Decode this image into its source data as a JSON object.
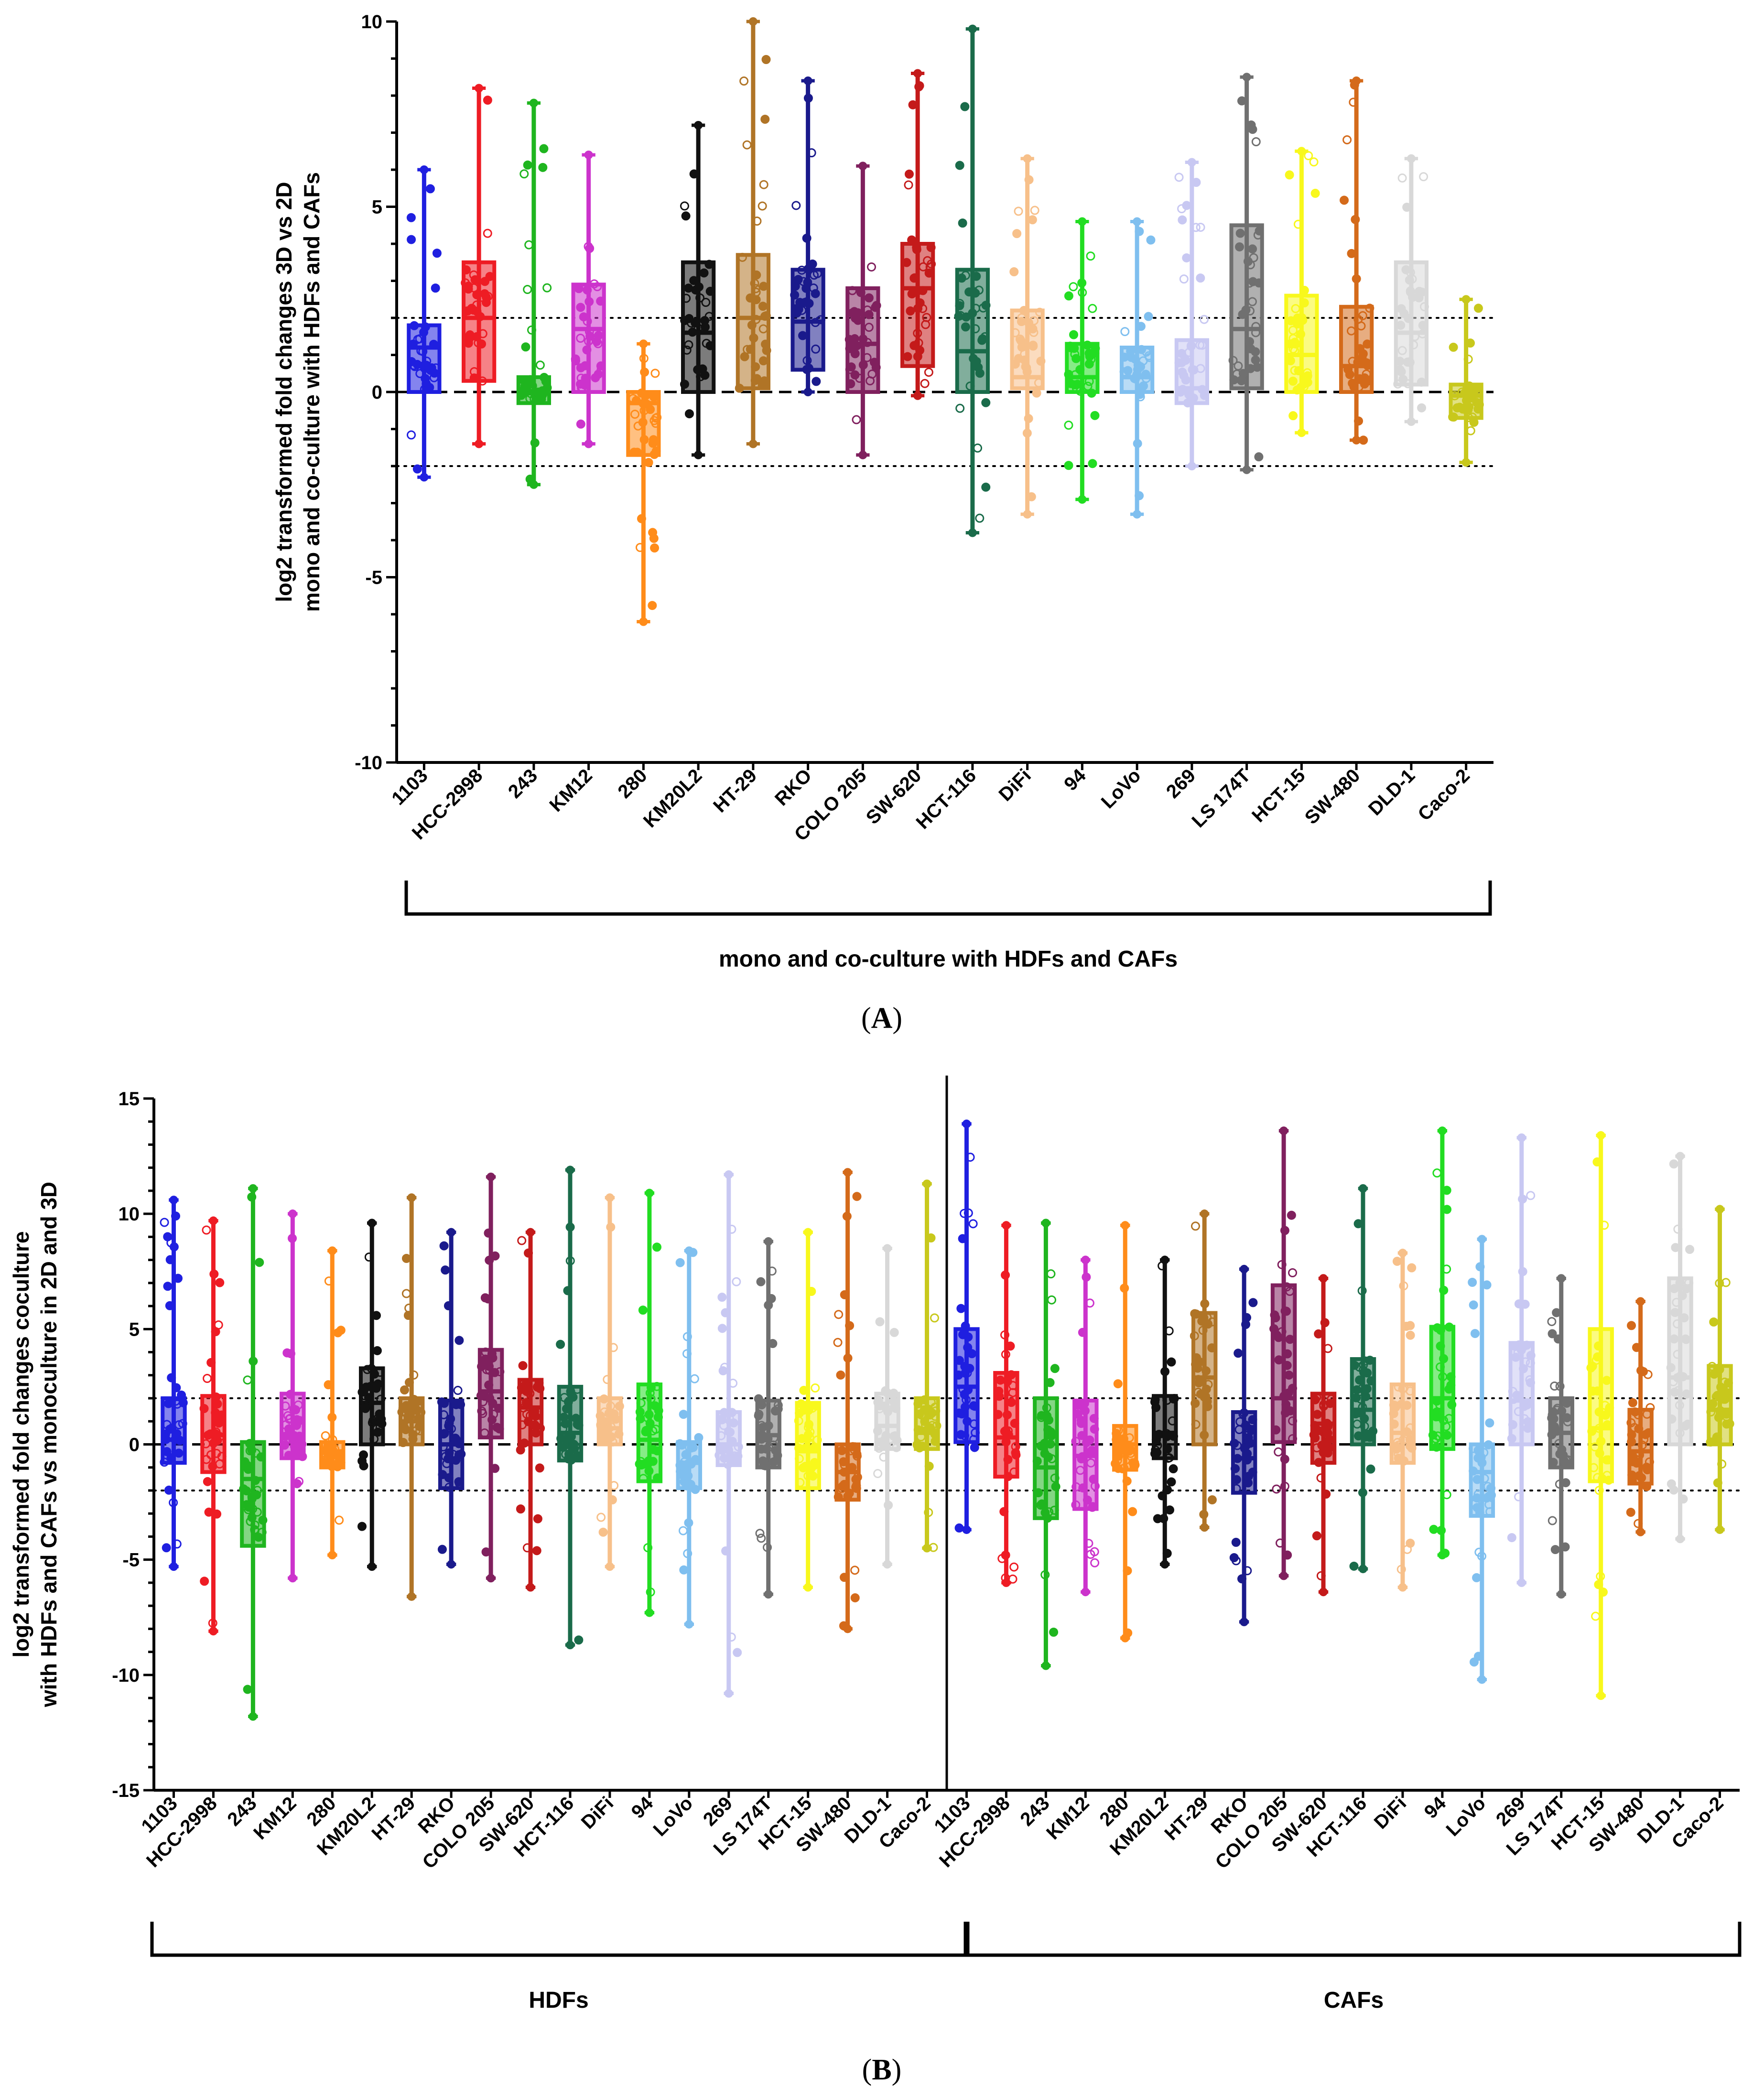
{
  "chart_data": [
    {
      "panel_label": "(A)",
      "panel_letter": "A",
      "type": "box",
      "ylabel": [
        "log2 transformed fold changes 3D vs 2D",
        "mono and co-culture with HDFs and CAFs"
      ],
      "ylim": [
        -10,
        10
      ],
      "yticks": [
        10,
        5,
        0,
        -5,
        -10
      ],
      "reference_lines": {
        "dashed": [
          0
        ],
        "dotted": [
          2,
          -2
        ]
      },
      "group_labels": [
        "mono and co-culture with HDFs and CAFs"
      ],
      "categories": [
        "1103",
        "HCC-2998",
        "243",
        "KM12",
        "280",
        "KM20L2",
        "HT-29",
        "RKO",
        "COLO 205",
        "SW-620",
        "HCT-116",
        "DiFi",
        "94",
        "LoVo",
        "269",
        "LS 174T",
        "HCT-15",
        "SW-480",
        "DLD-1",
        "Caco-2"
      ],
      "colors": [
        "#1f1fe0",
        "#ee1c24",
        "#1fb51f",
        "#cc33cc",
        "#ff8c1a",
        "#111111",
        "#b07426",
        "#1a1a8c",
        "#80205e",
        "#c41a1a",
        "#1a6b4a",
        "#f7c08a",
        "#22dd22",
        "#7fbfef",
        "#c8c8f2",
        "#707070",
        "#f8f81c",
        "#d46a1a",
        "#d8d8d8",
        "#c8c81c"
      ],
      "boxes": [
        {
          "min": -2.3,
          "q1": 0.0,
          "median": 1.2,
          "q3": 1.8,
          "max": 6.0
        },
        {
          "min": -1.4,
          "q1": 0.3,
          "median": 2.0,
          "q3": 3.5,
          "max": 8.2
        },
        {
          "min": -2.5,
          "q1": -0.3,
          "median": 0.0,
          "q3": 0.4,
          "max": 7.8
        },
        {
          "min": -1.4,
          "q1": 0.0,
          "median": 1.7,
          "q3": 2.9,
          "max": 6.4
        },
        {
          "min": -6.2,
          "q1": -1.7,
          "median": -0.3,
          "q3": 0.0,
          "max": 1.3
        },
        {
          "min": -1.7,
          "q1": 0.0,
          "median": 1.6,
          "q3": 3.5,
          "max": 7.2
        },
        {
          "min": -1.4,
          "q1": 0.1,
          "median": 2.0,
          "q3": 3.7,
          "max": 10.0
        },
        {
          "min": 0.0,
          "q1": 0.6,
          "median": 1.9,
          "q3": 3.3,
          "max": 8.4
        },
        {
          "min": -1.7,
          "q1": 0.0,
          "median": 1.3,
          "q3": 2.8,
          "max": 6.1
        },
        {
          "min": -0.1,
          "q1": 0.7,
          "median": 2.8,
          "q3": 4.0,
          "max": 8.6
        },
        {
          "min": -3.8,
          "q1": 0.0,
          "median": 1.1,
          "q3": 3.3,
          "max": 9.8
        },
        {
          "min": -3.3,
          "q1": 0.1,
          "median": 0.4,
          "q3": 2.2,
          "max": 6.3
        },
        {
          "min": -2.9,
          "q1": 0.0,
          "median": 0.4,
          "q3": 1.3,
          "max": 4.6
        },
        {
          "min": -3.3,
          "q1": 0.0,
          "median": 0.4,
          "q3": 1.2,
          "max": 4.6
        },
        {
          "min": -2.0,
          "q1": -0.3,
          "median": 0.1,
          "q3": 1.4,
          "max": 6.2
        },
        {
          "min": -2.1,
          "q1": 0.1,
          "median": 1.7,
          "q3": 4.5,
          "max": 8.5
        },
        {
          "min": -1.1,
          "q1": 0.0,
          "median": 1.0,
          "q3": 2.6,
          "max": 6.5
        },
        {
          "min": -1.3,
          "q1": 0.0,
          "median": 0.7,
          "q3": 2.3,
          "max": 8.4
        },
        {
          "min": -0.8,
          "q1": 0.2,
          "median": 1.6,
          "q3": 3.5,
          "max": 6.3
        },
        {
          "min": -1.9,
          "q1": -0.7,
          "median": -0.1,
          "q3": 0.2,
          "max": 2.5
        }
      ]
    },
    {
      "panel_label": "(B)",
      "panel_letter": "B",
      "type": "box",
      "ylabel": [
        "log2 transformed fold changes coculture",
        "with HDFs and CAFs vs monoculture in 2D and 3D"
      ],
      "ylim": [
        -15,
        15
      ],
      "yticks": [
        15,
        10,
        5,
        0,
        -5,
        -10,
        -15
      ],
      "reference_lines": {
        "dashed": [
          0
        ],
        "dotted": [
          2,
          -2
        ]
      },
      "group_labels": [
        "HDFs",
        "CAFs"
      ],
      "categories": [
        "1103",
        "HCC-2998",
        "243",
        "KM12",
        "280",
        "KM20L2",
        "HT-29",
        "RKO",
        "COLO 205",
        "SW-620",
        "HCT-116",
        "DiFi",
        "94",
        "LoVo",
        "269",
        "LS 174T",
        "HCT-15",
        "SW-480",
        "DLD-1",
        "Caco-2",
        "1103",
        "HCC-2998",
        "243",
        "KM12",
        "280",
        "KM20L2",
        "HT-29",
        "RKO",
        "COLO 205",
        "SW-620",
        "HCT-116",
        "DiFi",
        "94",
        "LoVo",
        "269",
        "LS 174T",
        "HCT-15",
        "SW-480",
        "DLD-1",
        "Caco-2"
      ],
      "colors": [
        "#1f1fe0",
        "#ee1c24",
        "#1fb51f",
        "#cc33cc",
        "#ff8c1a",
        "#111111",
        "#b07426",
        "#1a1a8c",
        "#80205e",
        "#c41a1a",
        "#1a6b4a",
        "#f7c08a",
        "#22dd22",
        "#7fbfef",
        "#c8c8f2",
        "#707070",
        "#f8f81c",
        "#d46a1a",
        "#d8d8d8",
        "#c8c81c",
        "#1f1fe0",
        "#ee1c24",
        "#1fb51f",
        "#cc33cc",
        "#ff8c1a",
        "#111111",
        "#b07426",
        "#1a1a8c",
        "#80205e",
        "#c41a1a",
        "#1a6b4a",
        "#f7c08a",
        "#22dd22",
        "#7fbfef",
        "#c8c8f2",
        "#707070",
        "#f8f81c",
        "#d46a1a",
        "#d8d8d8",
        "#c8c81c"
      ],
      "boxes": [
        {
          "min": -5.3,
          "q1": -0.8,
          "median": 0.2,
          "q3": 2.0,
          "max": 10.6
        },
        {
          "min": -8.1,
          "q1": -1.2,
          "median": 0.4,
          "q3": 2.1,
          "max": 9.7
        },
        {
          "min": -11.8,
          "q1": -4.4,
          "median": -1.5,
          "q3": 0.1,
          "max": 11.1
        },
        {
          "min": -5.8,
          "q1": -0.6,
          "median": 0.4,
          "q3": 2.2,
          "max": 10.0
        },
        {
          "min": -4.8,
          "q1": -1.0,
          "median": -0.3,
          "q3": 0.1,
          "max": 8.4
        },
        {
          "min": -5.3,
          "q1": 0.0,
          "median": 1.8,
          "q3": 3.3,
          "max": 9.6
        },
        {
          "min": -6.6,
          "q1": 0.0,
          "median": 1.0,
          "q3": 2.0,
          "max": 10.7
        },
        {
          "min": -5.2,
          "q1": -1.9,
          "median": 0.0,
          "q3": 1.9,
          "max": 9.2
        },
        {
          "min": -5.8,
          "q1": 0.3,
          "median": 2.3,
          "q3": 4.1,
          "max": 11.6
        },
        {
          "min": -6.2,
          "q1": 0.0,
          "median": 1.6,
          "q3": 2.8,
          "max": 9.2
        },
        {
          "min": -8.7,
          "q1": -0.7,
          "median": 0.5,
          "q3": 2.5,
          "max": 11.9
        },
        {
          "min": -5.3,
          "q1": 0.0,
          "median": 0.7,
          "q3": 2.0,
          "max": 10.7
        },
        {
          "min": -7.3,
          "q1": -1.6,
          "median": 0.2,
          "q3": 2.6,
          "max": 10.9
        },
        {
          "min": -7.8,
          "q1": -1.9,
          "median": -0.8,
          "q3": 0.1,
          "max": 8.4
        },
        {
          "min": -10.8,
          "q1": -0.9,
          "median": 0.0,
          "q3": 1.4,
          "max": 11.7
        },
        {
          "min": -6.5,
          "q1": -1.0,
          "median": 0.4,
          "q3": 1.9,
          "max": 8.8
        },
        {
          "min": -6.2,
          "q1": -1.9,
          "median": -0.3,
          "q3": 1.8,
          "max": 9.2
        },
        {
          "min": -8.0,
          "q1": -2.4,
          "median": -1.2,
          "q3": 0.0,
          "max": 11.8
        },
        {
          "min": -5.2,
          "q1": -0.2,
          "median": 0.8,
          "q3": 2.2,
          "max": 8.5
        },
        {
          "min": -4.5,
          "q1": -0.2,
          "median": 0.5,
          "q3": 2.0,
          "max": 11.3
        },
        {
          "min": -3.7,
          "q1": 0.1,
          "median": 2.5,
          "q3": 5.0,
          "max": 13.9
        },
        {
          "min": -6.0,
          "q1": -1.4,
          "median": 0.3,
          "q3": 3.1,
          "max": 9.5
        },
        {
          "min": -9.6,
          "q1": -3.2,
          "median": -1.0,
          "q3": 2.0,
          "max": 9.6
        },
        {
          "min": -6.4,
          "q1": -2.8,
          "median": -0.5,
          "q3": 1.9,
          "max": 8.0
        },
        {
          "min": -8.4,
          "q1": -1.1,
          "median": 0.0,
          "q3": 0.8,
          "max": 9.5
        },
        {
          "min": -5.2,
          "q1": -0.6,
          "median": 0.5,
          "q3": 2.1,
          "max": 8.0
        },
        {
          "min": -3.6,
          "q1": 0.0,
          "median": 2.9,
          "q3": 5.7,
          "max": 10.0
        },
        {
          "min": -7.7,
          "q1": -2.1,
          "median": -0.6,
          "q3": 1.4,
          "max": 7.6
        },
        {
          "min": -5.7,
          "q1": 0.1,
          "median": 2.0,
          "q3": 6.9,
          "max": 13.6
        },
        {
          "min": -6.4,
          "q1": -0.8,
          "median": 0.9,
          "q3": 2.2,
          "max": 7.2
        },
        {
          "min": -5.4,
          "q1": 0.0,
          "median": 1.5,
          "q3": 3.7,
          "max": 11.1
        },
        {
          "min": -6.2,
          "q1": -0.8,
          "median": 0.5,
          "q3": 2.6,
          "max": 8.3
        },
        {
          "min": -4.8,
          "q1": -0.2,
          "median": 2.0,
          "q3": 5.1,
          "max": 13.6
        },
        {
          "min": -10.2,
          "q1": -3.1,
          "median": -1.2,
          "q3": 0.0,
          "max": 8.9
        },
        {
          "min": -6.0,
          "q1": 0.0,
          "median": 1.9,
          "q3": 4.4,
          "max": 13.3
        },
        {
          "min": -6.5,
          "q1": -1.0,
          "median": 0.5,
          "q3": 2.0,
          "max": 7.2
        },
        {
          "min": -10.9,
          "q1": -1.6,
          "median": 0.7,
          "q3": 5.0,
          "max": 13.4
        },
        {
          "min": -3.8,
          "q1": -1.7,
          "median": -0.3,
          "q3": 1.5,
          "max": 6.2
        },
        {
          "min": -4.1,
          "q1": 0.0,
          "median": 2.9,
          "q3": 7.2,
          "max": 12.5
        },
        {
          "min": -3.7,
          "q1": 0.0,
          "median": 1.5,
          "q3": 3.4,
          "max": 10.2
        }
      ]
    }
  ]
}
